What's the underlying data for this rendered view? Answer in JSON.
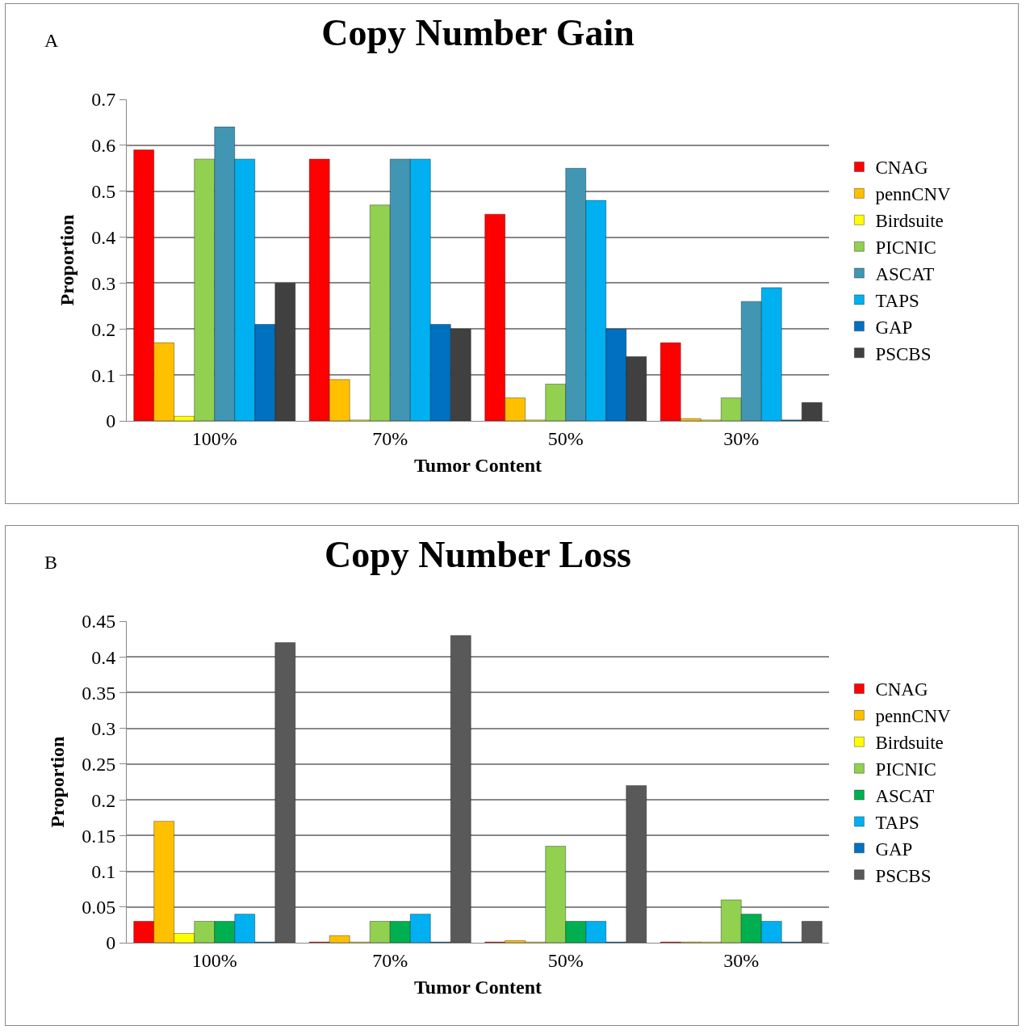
{
  "chart_data": [
    {
      "type": "bar",
      "title": "Copy Number Gain",
      "annotations": [
        "A"
      ],
      "xlabel": "Tumor Content",
      "ylabel": "Proportion",
      "categories": [
        "100%",
        "70%",
        "50%",
        "30%"
      ],
      "ylim": [
        0,
        0.7
      ],
      "yticks": [
        0,
        0.1,
        0.2,
        0.3,
        0.4,
        0.5,
        0.6,
        0.7
      ],
      "grid": "y",
      "legend": "right",
      "series": [
        {
          "name": "CNAG",
          "color": "#ff0000",
          "values": [
            0.59,
            0.57,
            0.45,
            0.17
          ]
        },
        {
          "name": "pennCNV",
          "color": "#ffc000",
          "values": [
            0.17,
            0.09,
            0.05,
            0.005
          ]
        },
        {
          "name": "Birdsuite",
          "color": "#ffff00",
          "values": [
            0.01,
            0.002,
            0.002,
            0.002
          ]
        },
        {
          "name": "PICNIC",
          "color": "#92d050",
          "values": [
            0.57,
            0.47,
            0.08,
            0.05
          ]
        },
        {
          "name": "ASCAT",
          "color": "#4196b4",
          "values": [
            0.64,
            0.57,
            0.55,
            0.26
          ]
        },
        {
          "name": "TAPS",
          "color": "#00b0f0",
          "values": [
            0.57,
            0.57,
            0.48,
            0.29
          ]
        },
        {
          "name": "GAP",
          "color": "#0070c0",
          "values": [
            0.21,
            0.21,
            0.2,
            0.002
          ]
        },
        {
          "name": "PSCBS",
          "color": "#404040",
          "values": [
            0.3,
            0.2,
            0.14,
            0.04
          ]
        }
      ]
    },
    {
      "type": "bar",
      "title": "Copy Number Loss",
      "annotations": [
        "B"
      ],
      "xlabel": "Tumor Content",
      "ylabel": "Proportion",
      "categories": [
        "100%",
        "70%",
        "50%",
        "30%"
      ],
      "ylim": [
        0,
        0.45
      ],
      "yticks": [
        0,
        0.05,
        0.1,
        0.15,
        0.2,
        0.25,
        0.3,
        0.35,
        0.4,
        0.45
      ],
      "grid": "y",
      "legend": "right",
      "series": [
        {
          "name": "CNAG",
          "color": "#ff0000",
          "values": [
            0.03,
            0.001,
            0.001,
            0.001
          ]
        },
        {
          "name": "pennCNV",
          "color": "#ffc000",
          "values": [
            0.17,
            0.01,
            0.003,
            0.001
          ]
        },
        {
          "name": "Birdsuite",
          "color": "#ffff00",
          "values": [
            0.013,
            0.001,
            0.001,
            0.001
          ]
        },
        {
          "name": "PICNIC",
          "color": "#92d050",
          "values": [
            0.03,
            0.03,
            0.135,
            0.06
          ]
        },
        {
          "name": "ASCAT",
          "color": "#00b050",
          "values": [
            0.03,
            0.03,
            0.03,
            0.04
          ]
        },
        {
          "name": "TAPS",
          "color": "#00b0f0",
          "values": [
            0.04,
            0.04,
            0.03,
            0.03
          ]
        },
        {
          "name": "GAP",
          "color": "#0070c0",
          "values": [
            0.001,
            0.001,
            0.001,
            0.001
          ]
        },
        {
          "name": "PSCBS",
          "color": "#595959",
          "values": [
            0.42,
            0.43,
            0.22,
            0.03
          ]
        }
      ]
    }
  ]
}
